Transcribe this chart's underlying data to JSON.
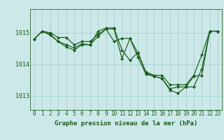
{
  "title": "Graphe pression niveau de la mer (hPa)",
  "background_color": "#cce8e8",
  "grid_color_major": "#aad0d0",
  "grid_color_minor": "#bbdede",
  "line_color": "#1a5c1a",
  "marker_color": "#1a5c1a",
  "spine_color": "#336633",
  "xlim": [
    -0.5,
    23.5
  ],
  "ylim": [
    1012.55,
    1015.75
  ],
  "yticks": [
    1013,
    1014,
    1015
  ],
  "xticks": [
    0,
    1,
    2,
    3,
    4,
    5,
    6,
    7,
    8,
    9,
    10,
    11,
    12,
    13,
    14,
    15,
    16,
    17,
    18,
    19,
    20,
    21,
    22,
    23
  ],
  "series": [
    [
      1014.8,
      1015.05,
      1015.0,
      1014.85,
      1014.85,
      1014.62,
      1014.72,
      1014.72,
      1014.95,
      1015.12,
      1014.72,
      1014.82,
      1014.82,
      1014.35,
      1013.75,
      1013.65,
      1013.65,
      1013.35,
      1013.35,
      1013.35,
      1013.65,
      1014.3,
      1015.05,
      1015.05
    ],
    [
      1014.8,
      1015.05,
      1014.95,
      1014.72,
      1014.62,
      1014.52,
      1014.65,
      1014.62,
      1015.05,
      1015.15,
      1015.15,
      1014.45,
      1014.12,
      1014.38,
      1013.72,
      1013.62,
      1013.55,
      1013.22,
      1013.28,
      1013.28,
      1013.62,
      1013.65,
      1015.05,
      1015.05
    ],
    [
      1014.8,
      1015.05,
      1014.92,
      1014.72,
      1014.55,
      1014.45,
      1014.62,
      1014.62,
      1014.88,
      1015.12,
      1015.12,
      1014.18,
      1014.82,
      1014.22,
      1013.68,
      1013.62,
      1013.55,
      1013.18,
      1013.08,
      1013.28,
      1013.28,
      1013.85,
      1015.05,
      1015.05
    ]
  ],
  "label_fontsize": 5.5,
  "ylabel_fontsize": 6,
  "title_fontsize": 6.5,
  "linewidth": 0.85,
  "markersize": 2.0
}
